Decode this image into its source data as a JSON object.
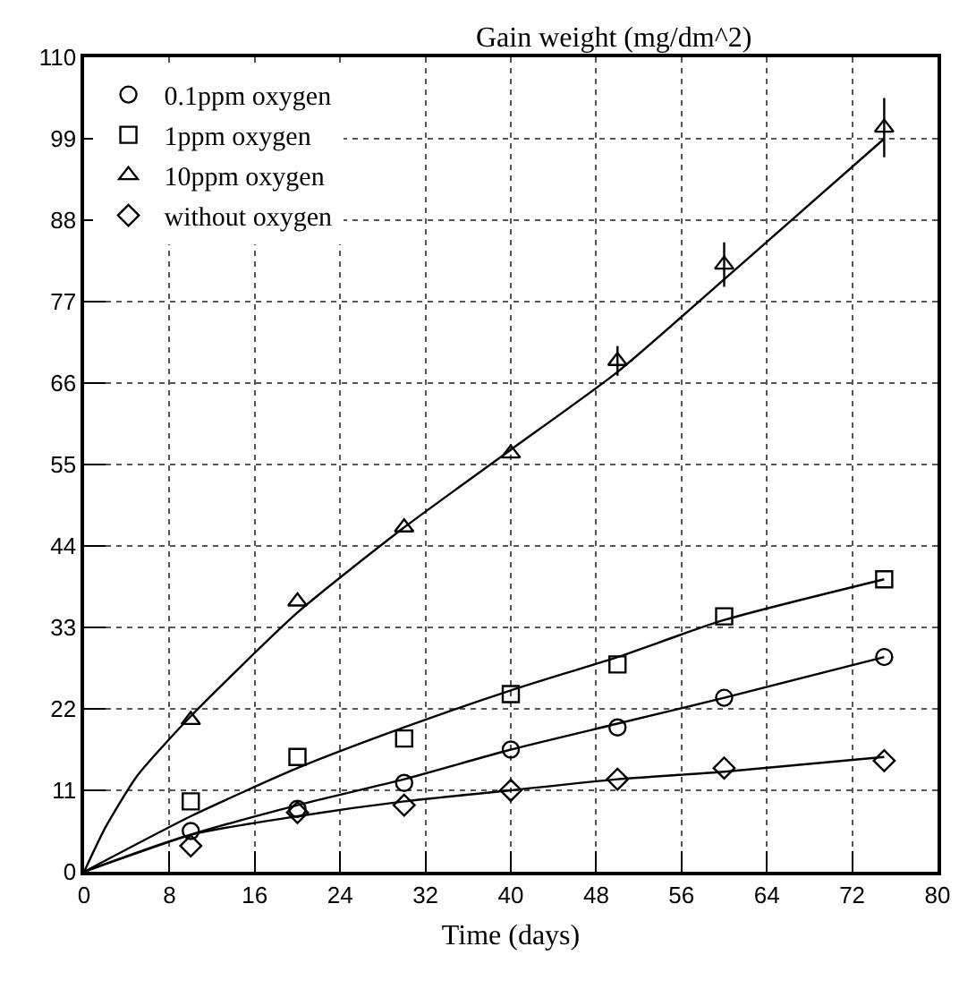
{
  "chart_data": {
    "type": "scatter",
    "ylabel": "Gain weight (mg/dm^2)",
    "xlabel": "Time (days)",
    "xlim": [
      0,
      80
    ],
    "xticks": [
      0,
      8,
      16,
      24,
      32,
      40,
      48,
      56,
      64,
      72,
      80
    ],
    "ylim": [
      0,
      110
    ],
    "yticks": [
      0,
      11,
      22,
      33,
      44,
      55,
      66,
      77,
      88,
      99,
      110
    ],
    "grid": true,
    "legend": "top left",
    "series": [
      {
        "name": "0.1ppm oxygen",
        "marker": "circle",
        "color": "#000000",
        "x": [
          10,
          20,
          30,
          40,
          50,
          60,
          75
        ],
        "values": [
          5.5,
          8.5,
          12,
          16.5,
          19.5,
          23.5,
          29
        ]
      },
      {
        "name": "1ppm oxygen",
        "marker": "square",
        "color": "#000000",
        "x": [
          10,
          20,
          30,
          40,
          50,
          60,
          75
        ],
        "values": [
          9.5,
          15.5,
          18,
          24,
          28,
          34.5,
          39.5
        ]
      },
      {
        "name": "10ppm oxygen",
        "marker": "triangle",
        "color": "#000000",
        "x": [
          10,
          20,
          30,
          40,
          50,
          60,
          75
        ],
        "values": [
          20.5,
          36.5,
          46.5,
          56.5,
          69,
          82,
          100.5
        ],
        "errors": [
          null,
          null,
          null,
          null,
          2,
          3,
          4
        ]
      },
      {
        "name": "without oxygen",
        "marker": "diamond",
        "color": "#000000",
        "x": [
          10,
          20,
          30,
          40,
          50,
          60,
          75
        ],
        "values": [
          3.5,
          8,
          9,
          11,
          12.5,
          14,
          15
        ]
      },
      {
        "type": "line",
        "marker": "none",
        "color": "#000000",
        "x": [
          0,
          2,
          5,
          10,
          20,
          30,
          40,
          50,
          60,
          75
        ],
        "values": [
          0,
          6,
          13,
          21,
          35,
          46.5,
          57,
          67.5,
          80,
          99
        ]
      },
      {
        "type": "line",
        "marker": "none",
        "color": "#000000",
        "x": [
          0,
          10,
          20,
          30,
          40,
          50,
          60,
          75
        ],
        "values": [
          0,
          7.5,
          14,
          19.5,
          24.5,
          29,
          34,
          39.5
        ]
      },
      {
        "type": "line",
        "marker": "none",
        "color": "#000000",
        "x": [
          0,
          10,
          20,
          30,
          40,
          50,
          60,
          75
        ],
        "values": [
          0,
          5,
          9,
          12.5,
          16.5,
          20,
          23.5,
          29
        ]
      },
      {
        "type": "line",
        "marker": "none",
        "color": "#000000",
        "x": [
          0,
          10,
          20,
          30,
          40,
          50,
          60,
          75
        ],
        "values": [
          0,
          5,
          7.5,
          9.5,
          11,
          12.5,
          13.5,
          15.5
        ]
      }
    ]
  }
}
